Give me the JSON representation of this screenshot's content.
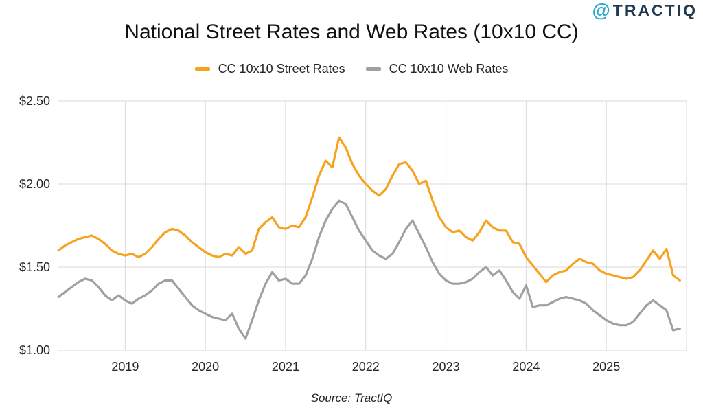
{
  "logo": {
    "at_symbol": "@",
    "wordmark": "TRACTIQ",
    "teal": "#2BA8CB",
    "navy": "#21394E"
  },
  "footer": {
    "source": "Source: TractIQ"
  },
  "chart_data": {
    "type": "line",
    "title": "National Street Rates and Web Rates (10x10 CC)",
    "xlabel": "",
    "ylabel": "",
    "ylim": [
      1.0,
      2.5
    ],
    "grid": true,
    "grid_color": "#d9d9d9",
    "legend_position": "top-center",
    "y_ticks": [
      {
        "v": 2.5,
        "label": "$2.50"
      },
      {
        "v": 2.0,
        "label": "$2.00"
      },
      {
        "v": 1.5,
        "label": "$1.50"
      },
      {
        "v": 1.0,
        "label": "$1.00"
      }
    ],
    "x_unit": "month",
    "x_months_start": "2018-03",
    "x_total_months": 94,
    "x_gridlines": [
      {
        "index": 10,
        "label": "2019"
      },
      {
        "index": 22,
        "label": "2020"
      },
      {
        "index": 34,
        "label": "2021"
      },
      {
        "index": 46,
        "label": "2022"
      },
      {
        "index": 58,
        "label": "2023"
      },
      {
        "index": 70,
        "label": "2024"
      },
      {
        "index": 82,
        "label": "2025"
      },
      {
        "index": 94,
        "label": ""
      }
    ],
    "series": [
      {
        "name": "CC 10x10 Street Rates",
        "color": "#F7A11E",
        "values": [
          1.6,
          1.63,
          1.65,
          1.67,
          1.68,
          1.69,
          1.67,
          1.64,
          1.6,
          1.58,
          1.57,
          1.58,
          1.56,
          1.58,
          1.62,
          1.67,
          1.71,
          1.73,
          1.72,
          1.69,
          1.65,
          1.62,
          1.59,
          1.57,
          1.56,
          1.58,
          1.57,
          1.62,
          1.58,
          1.6,
          1.73,
          1.77,
          1.8,
          1.74,
          1.73,
          1.75,
          1.74,
          1.8,
          1.92,
          2.05,
          2.14,
          2.1,
          2.28,
          2.22,
          2.12,
          2.05,
          2.0,
          1.96,
          1.93,
          1.97,
          2.05,
          2.12,
          2.13,
          2.08,
          2.0,
          2.02,
          1.9,
          1.8,
          1.74,
          1.71,
          1.72,
          1.68,
          1.66,
          1.71,
          1.78,
          1.74,
          1.72,
          1.72,
          1.65,
          1.64,
          1.56,
          1.51,
          1.46,
          1.41,
          1.45,
          1.47,
          1.48,
          1.52,
          1.55,
          1.53,
          1.52,
          1.48,
          1.46,
          1.45,
          1.44,
          1.43,
          1.44,
          1.48,
          1.54,
          1.6,
          1.55,
          1.61,
          1.45,
          1.42
        ]
      },
      {
        "name": "CC 10x10 Web Rates",
        "color": "#A0A0A0",
        "values": [
          1.32,
          1.35,
          1.38,
          1.41,
          1.43,
          1.42,
          1.38,
          1.33,
          1.3,
          1.33,
          1.3,
          1.28,
          1.31,
          1.33,
          1.36,
          1.4,
          1.42,
          1.42,
          1.37,
          1.32,
          1.27,
          1.24,
          1.22,
          1.2,
          1.19,
          1.18,
          1.22,
          1.13,
          1.07,
          1.18,
          1.3,
          1.4,
          1.47,
          1.42,
          1.43,
          1.4,
          1.4,
          1.45,
          1.55,
          1.68,
          1.78,
          1.85,
          1.9,
          1.88,
          1.8,
          1.72,
          1.66,
          1.6,
          1.57,
          1.55,
          1.58,
          1.65,
          1.73,
          1.78,
          1.7,
          1.62,
          1.53,
          1.46,
          1.42,
          1.4,
          1.4,
          1.41,
          1.43,
          1.47,
          1.5,
          1.45,
          1.48,
          1.42,
          1.35,
          1.31,
          1.39,
          1.26,
          1.27,
          1.27,
          1.29,
          1.31,
          1.32,
          1.31,
          1.3,
          1.28,
          1.24,
          1.21,
          1.18,
          1.16,
          1.15,
          1.15,
          1.17,
          1.22,
          1.27,
          1.3,
          1.27,
          1.24,
          1.12,
          1.13
        ]
      }
    ]
  }
}
